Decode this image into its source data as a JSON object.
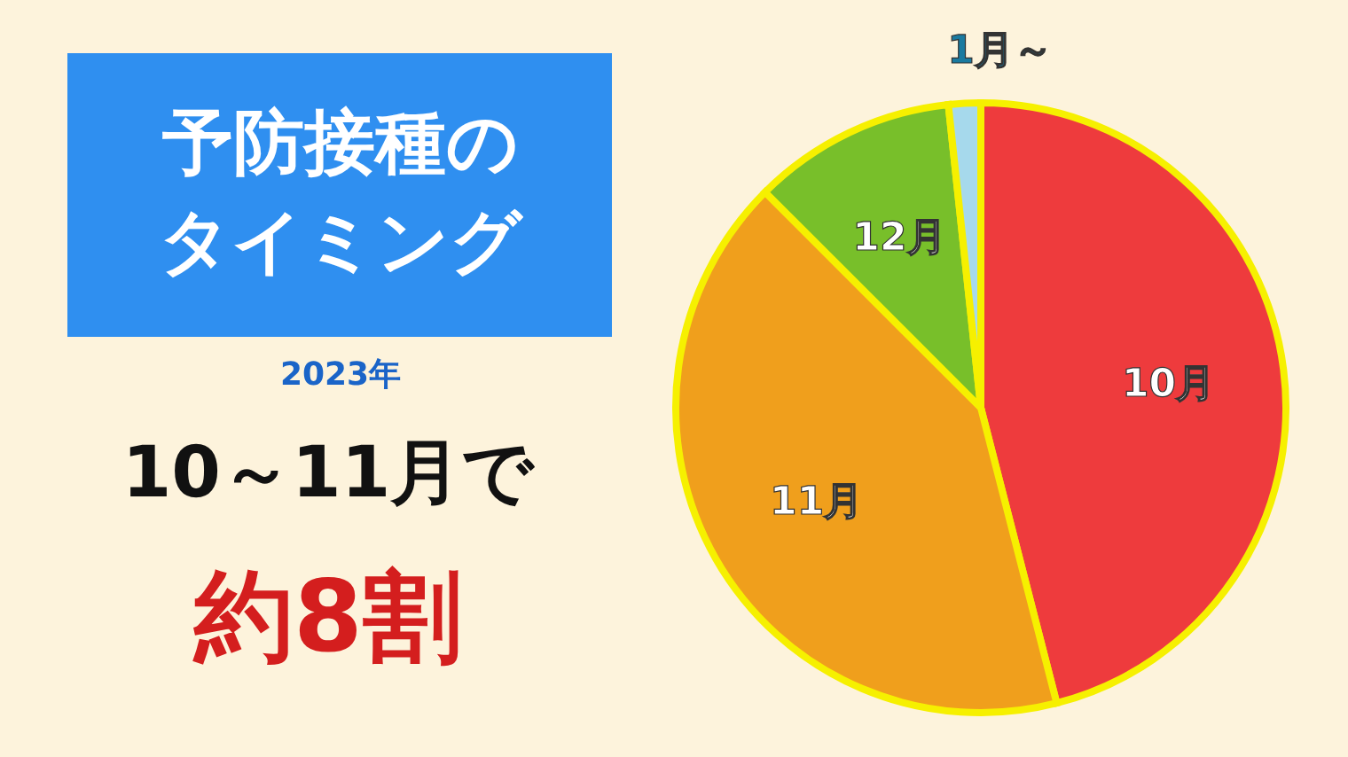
{
  "chart_data": {
    "type": "pie",
    "title": "予防接種のタイミング",
    "subtitle": "2023年",
    "annotations": [
      "10～11月で",
      "約8割"
    ],
    "categories": [
      "10月",
      "11月",
      "12月",
      "1月～"
    ],
    "values": [
      46,
      41.5,
      10.8,
      1.7
    ],
    "colors": [
      "#ee3b3d",
      "#f09f1c",
      "#78bf2a",
      "#a6d9ec"
    ]
  }
}
